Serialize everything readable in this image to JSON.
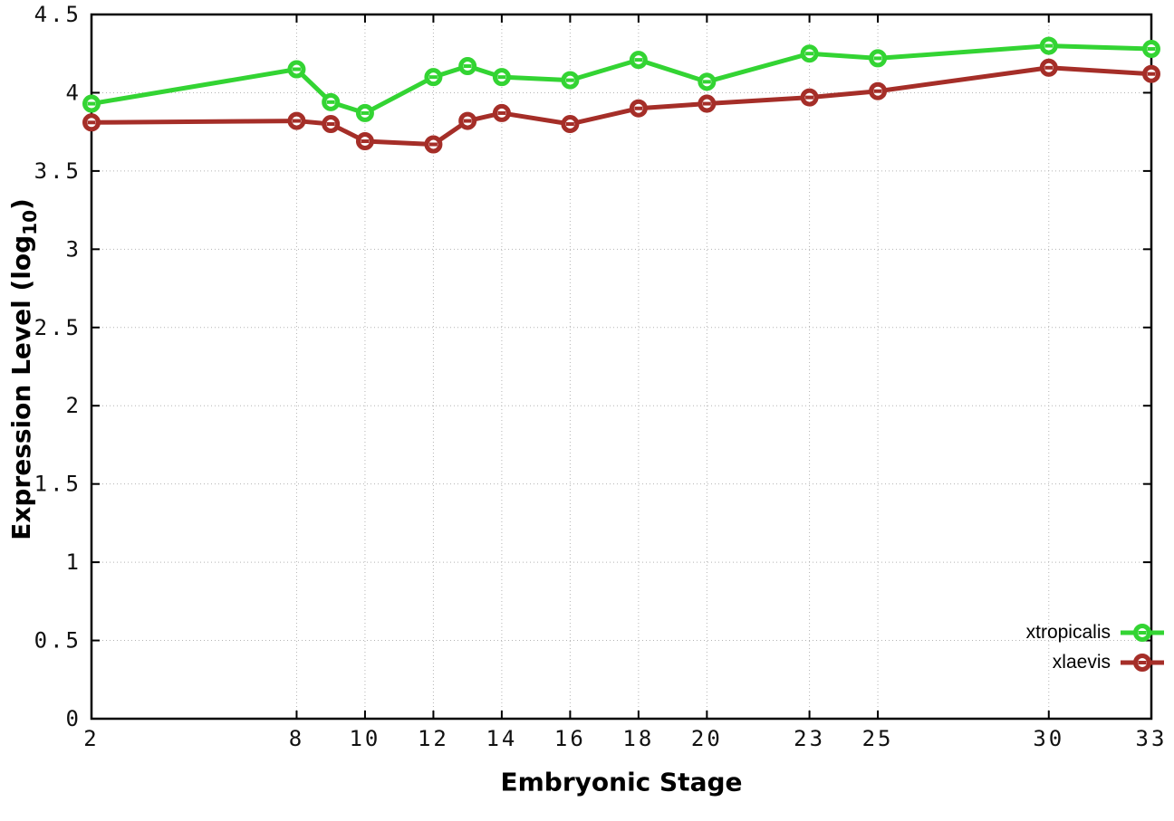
{
  "chart_data": {
    "type": "line",
    "title": "",
    "xlabel": "Embryonic Stage",
    "ylabel": "Expression Level (log10)",
    "ylabel_parts": {
      "prefix": "Expression Level (log",
      "sub": "10",
      "suffix": ")"
    },
    "x": [
      2,
      8,
      9,
      10,
      12,
      13,
      14,
      16,
      18,
      20,
      23,
      25,
      30,
      33
    ],
    "series": [
      {
        "name": "xtropicalis",
        "color": "#33d433",
        "values": [
          3.93,
          4.15,
          3.94,
          3.87,
          4.1,
          4.17,
          4.1,
          4.08,
          4.21,
          4.07,
          4.25,
          4.22,
          4.3,
          4.28
        ]
      },
      {
        "name": "xlaevis",
        "color": "#a52e28",
        "values": [
          3.81,
          3.82,
          3.8,
          3.69,
          3.67,
          3.82,
          3.87,
          3.8,
          3.9,
          3.93,
          3.97,
          4.01,
          4.16,
          4.12
        ]
      }
    ],
    "xlim": [
      2,
      33
    ],
    "ylim": [
      0,
      4.5
    ],
    "xticks": [
      2,
      8,
      10,
      12,
      14,
      16,
      18,
      20,
      23,
      25,
      30,
      33
    ],
    "xtick_labels": [
      "2",
      "8",
      "10",
      "12",
      "14",
      "16",
      "18",
      "20",
      "23",
      "25",
      "30",
      "33"
    ],
    "yticks": [
      0,
      0.5,
      1,
      1.5,
      2,
      2.5,
      3,
      3.5,
      4,
      4.5
    ],
    "ytick_labels": [
      "0",
      "0.5",
      "1",
      "1.5",
      "2",
      "2.5",
      "3",
      "3.5",
      "4",
      "4.5"
    ],
    "grid": true,
    "grid_color": "#b4b4b4",
    "border_color": "#000000",
    "legend_position": "inside-bottom-right",
    "marker": "open-circle-with-dash"
  }
}
